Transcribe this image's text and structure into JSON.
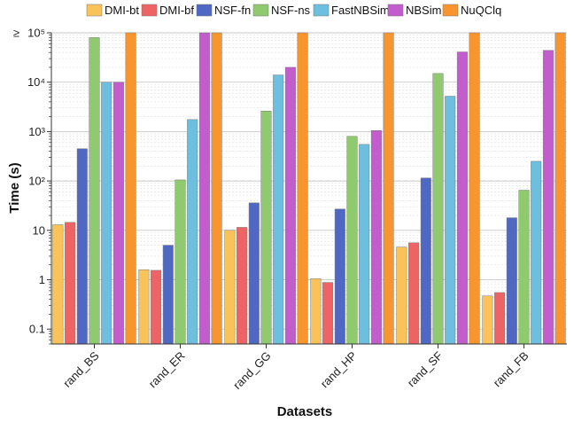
{
  "chart_data": {
    "type": "bar",
    "yscale": "log",
    "ylim": [
      0.05,
      100000
    ],
    "xlabel": "Datasets",
    "ylabel": "Time (s)",
    "ytick_labels": [
      "0.1",
      "1",
      "10",
      "10²",
      "10³",
      "10⁴",
      "10⁵"
    ],
    "ytick_values": [
      0.1,
      1,
      10,
      100,
      1000,
      10000,
      100000
    ],
    "ymax_prefix": "≥",
    "grid": true,
    "legend_position": "top",
    "categories": [
      "rand_BS",
      "rand_ER",
      "rand_GG",
      "rand_HP",
      "rand_SF",
      "rand_FB"
    ],
    "series": [
      {
        "name": "DMI-bt",
        "color": "#F9C35A",
        "values": [
          13,
          1.6,
          10,
          1.05,
          4.6,
          0.47
        ]
      },
      {
        "name": "DMI-bf",
        "color": "#EE6464",
        "values": [
          14.5,
          1.55,
          11.5,
          0.88,
          5.6,
          0.55
        ]
      },
      {
        "name": "NSF-fn",
        "color": "#4E68C4",
        "values": [
          450,
          5,
          36,
          27,
          115,
          18
        ]
      },
      {
        "name": "NSF-ns",
        "color": "#8FCB6E",
        "values": [
          80000,
          105,
          2600,
          800,
          15000,
          65
        ]
      },
      {
        "name": "FastNBSim",
        "color": "#6DBFDF",
        "values": [
          10000,
          1750,
          14000,
          550,
          5200,
          250
        ]
      },
      {
        "name": "NBSim",
        "color": "#C35CCC",
        "values": [
          10000,
          100000,
          20000,
          1050,
          41000,
          44000
        ]
      },
      {
        "name": "NuQClq",
        "color": "#F8952E",
        "values": [
          100000,
          100000,
          100000,
          100000,
          100000,
          100000
        ]
      }
    ]
  }
}
